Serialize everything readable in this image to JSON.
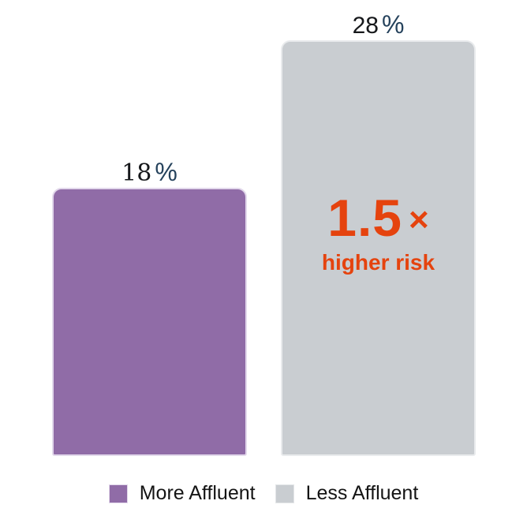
{
  "chart_data": {
    "type": "bar",
    "categories": [
      "More Affluent",
      "Less Affluent"
    ],
    "values": [
      18,
      28
    ],
    "unit": "%",
    "value_labels": [
      "18 %",
      "28 %"
    ],
    "title": "",
    "xlabel": "",
    "ylabel": "",
    "ylim": [
      0,
      30
    ],
    "grid": false,
    "legend_position": "bottom",
    "legend_entries": [
      "More Affluent",
      "Less Affluent"
    ],
    "annotation_text": "1.5 × higher risk",
    "colors": {
      "more_affluent_bar": "#906CA7",
      "less_affluent_bar": "#C9CDD1",
      "annotation": "#E5430E",
      "percent_sign": "#25425C",
      "value_text": "#16181B",
      "legend_text": "#141414",
      "background": "#FFFFFF"
    }
  },
  "bars": [
    {
      "value": "18",
      "suffix": "%",
      "category": "More Affluent"
    },
    {
      "value": "28",
      "suffix": "%",
      "category": "Less Affluent"
    }
  ],
  "annotation": {
    "multiplier": "1.5",
    "times": "×",
    "caption": "higher risk"
  },
  "legend": {
    "items": [
      {
        "label": "More Affluent",
        "color": "#906CA7"
      },
      {
        "label": "Less Affluent",
        "color": "#C9CDD1"
      }
    ]
  }
}
